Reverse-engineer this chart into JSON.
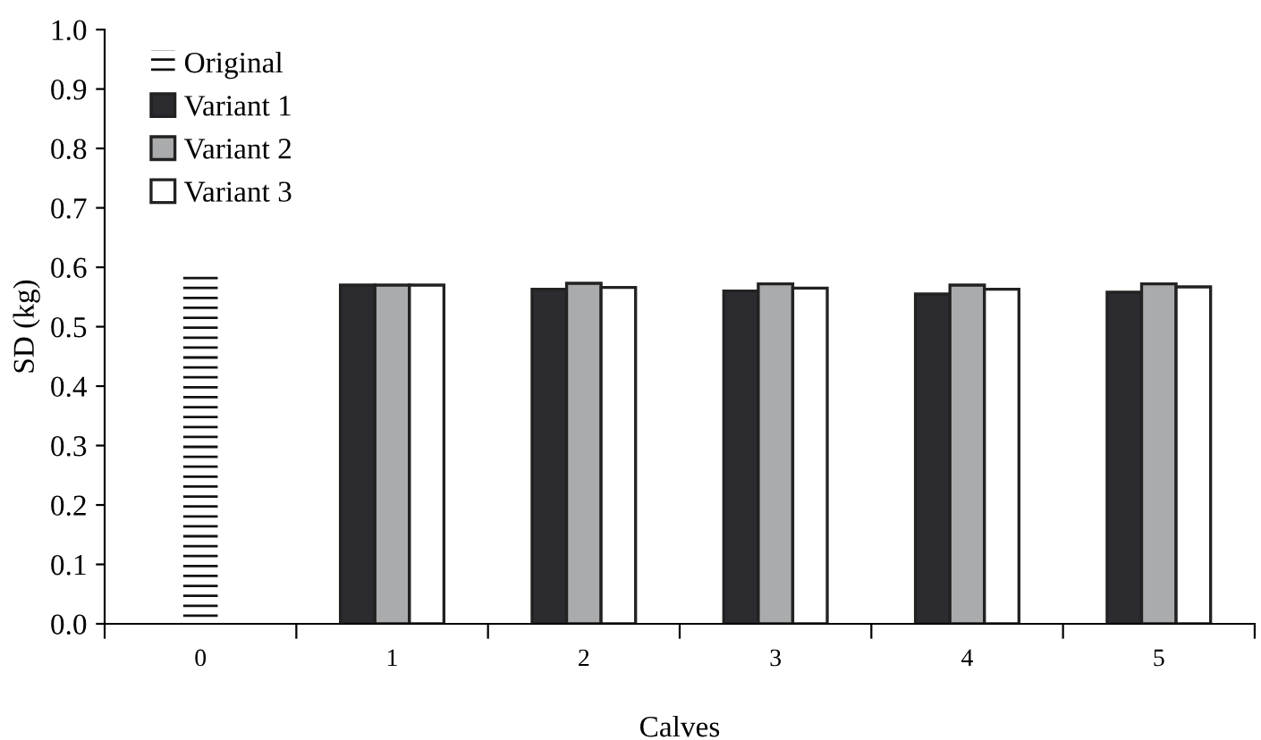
{
  "chart_data": {
    "type": "bar",
    "xlabel": "Calves",
    "ylabel": "SD (kg)",
    "categories": [
      "0",
      "1",
      "2",
      "3",
      "4",
      "5"
    ],
    "series": [
      {
        "name": "Original",
        "color": "#111111",
        "values": [
          0.59,
          null,
          null,
          null,
          null,
          null
        ]
      },
      {
        "name": "Variant 1",
        "color": "#2b2b30",
        "values": [
          null,
          0.57,
          0.563,
          0.56,
          0.555,
          0.558
        ]
      },
      {
        "name": "Variant 2",
        "color": "#aaabad",
        "values": [
          null,
          0.57,
          0.573,
          0.572,
          0.57,
          0.572
        ]
      },
      {
        "name": "Variant 3",
        "color": "#ffffff",
        "values": [
          null,
          0.57,
          0.566,
          0.565,
          0.563,
          0.567
        ]
      }
    ],
    "ylim": [
      0,
      1.0
    ],
    "yticks": [
      {
        "value": 0,
        "label": "0.0"
      },
      {
        "value": 0.1,
        "label": "0.1"
      },
      {
        "value": 0.2,
        "label": "0.2"
      },
      {
        "value": 0.3,
        "label": "0.3"
      },
      {
        "value": 0.4,
        "label": "0.4"
      },
      {
        "value": 0.5,
        "label": "0.5"
      },
      {
        "value": 0.6,
        "label": "0.6"
      },
      {
        "value": 0.7,
        "label": "0.7"
      },
      {
        "value": 0.8,
        "label": "0.8"
      },
      {
        "value": 0.9,
        "label": "0.9"
      },
      {
        "value": 1.0,
        "label": "1.0"
      }
    ],
    "grid": false,
    "legend": "top left"
  }
}
